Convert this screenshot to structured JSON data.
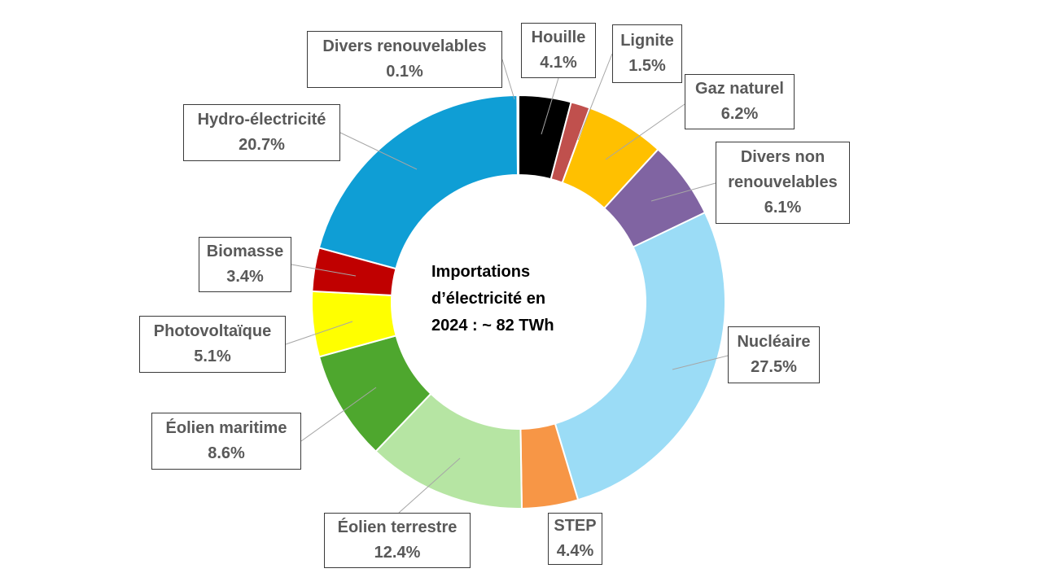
{
  "chart_data": {
    "type": "pie",
    "donut": true,
    "center_text": [
      "Importations",
      "d’électricité en",
      "2024 : ~ 82 TWh"
    ],
    "slices": [
      {
        "key": "houille",
        "lines": [
          "Houille"
        ],
        "value": 4.1,
        "display": "4.1%",
        "color": "#000000"
      },
      {
        "key": "lignite",
        "lines": [
          "Lignite"
        ],
        "value": 1.5,
        "display": "1.5%",
        "color": "#c0504d"
      },
      {
        "key": "gaz-naturel",
        "lines": [
          "Gaz naturel"
        ],
        "value": 6.2,
        "display": "6.2%",
        "color": "#ffc000"
      },
      {
        "key": "divers-non-renouvelables",
        "lines": [
          "Divers non",
          "renouvelables"
        ],
        "value": 6.1,
        "display": "6.1%",
        "color": "#8064a2"
      },
      {
        "key": "nucleaire",
        "lines": [
          "Nucléaire"
        ],
        "value": 27.5,
        "display": "27.5%",
        "color": "#9bdcf6"
      },
      {
        "key": "step",
        "lines": [
          "STEP"
        ],
        "value": 4.4,
        "display": "4.4%",
        "color": "#f79646"
      },
      {
        "key": "eolien-terrestre",
        "lines": [
          "Éolien terrestre"
        ],
        "value": 12.4,
        "display": "12.4%",
        "color": "#b6e5a3"
      },
      {
        "key": "eolien-maritime",
        "lines": [
          "Éolien maritime"
        ],
        "value": 8.6,
        "display": "8.6%",
        "color": "#4ea72e"
      },
      {
        "key": "photovoltaique",
        "lines": [
          "Photovoltaïque"
        ],
        "value": 5.1,
        "display": "5.1%",
        "color": "#ffff00"
      },
      {
        "key": "biomasse",
        "lines": [
          "Biomasse"
        ],
        "value": 3.4,
        "display": "3.4%",
        "color": "#c00000"
      },
      {
        "key": "hydro-electricite",
        "lines": [
          "Hydro-électricité"
        ],
        "value": 20.7,
        "display": "20.7%",
        "color": "#0f9ed5"
      },
      {
        "key": "divers-renouvelables",
        "lines": [
          "Divers renouvelables"
        ],
        "value": 0.1,
        "display": "0.1%",
        "color": "#5b9bd5"
      }
    ]
  }
}
